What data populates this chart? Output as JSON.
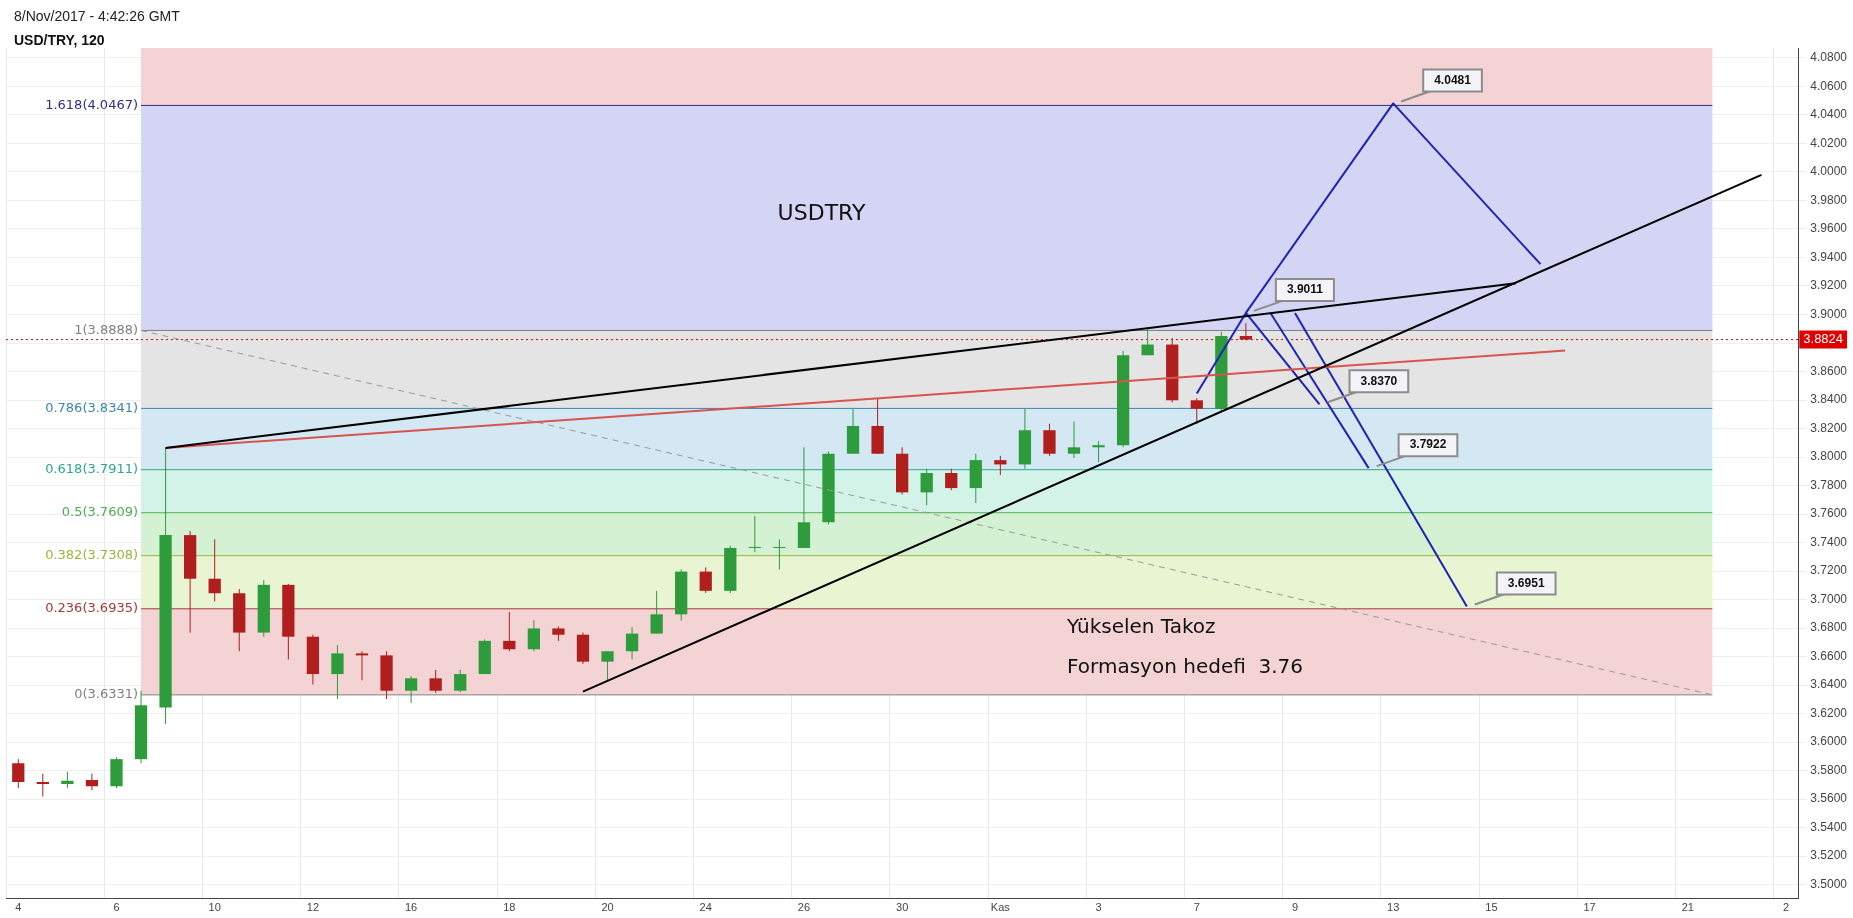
{
  "chart_data": {
    "type": "candlestick",
    "title": "USD/TRY, 120",
    "subtitle": "8/Nov/2017 - 4:42:26 GMT",
    "categories": [
      "4",
      null,
      null,
      null,
      "6",
      null,
      null,
      null,
      "10",
      null,
      null,
      null,
      "12",
      null,
      null,
      null,
      "16",
      null,
      null,
      null,
      "18",
      null,
      null,
      null,
      "20",
      null,
      null,
      null,
      "24",
      null,
      null,
      null,
      "26",
      null,
      null,
      null,
      "30",
      null,
      null,
      null,
      "Kas",
      null,
      null,
      null,
      "3",
      null,
      null,
      null,
      "7",
      null,
      null,
      null,
      "9",
      null,
      null,
      null,
      "13",
      null,
      null,
      null,
      "15",
      null,
      null,
      null,
      "17",
      null,
      null,
      null,
      "21",
      null,
      null,
      null,
      "2"
    ],
    "ohlc": [
      [
        3.5851,
        3.588,
        3.5676,
        3.5719
      ],
      [
        3.5719,
        3.5778,
        3.5618,
        3.5705
      ],
      [
        3.5705,
        3.5792,
        3.5676,
        3.5728
      ],
      [
        3.5734,
        3.5778,
        3.5661,
        3.569
      ],
      [
        3.569,
        3.5894,
        3.5676,
        3.588
      ],
      [
        3.588,
        3.636,
        3.5851,
        3.6258
      ],
      [
        3.6243,
        3.8064,
        3.6127,
        3.7452
      ],
      [
        3.7452,
        3.7481,
        3.6768,
        3.7146
      ],
      [
        3.7146,
        3.7423,
        3.6986,
        3.7044
      ],
      [
        3.7044,
        3.7074,
        3.6637,
        3.6768
      ],
      [
        3.6768,
        3.7138,
        3.6739,
        3.7103
      ],
      [
        3.7103,
        3.711,
        3.6579,
        3.6739
      ],
      [
        3.6739,
        3.6753,
        3.6404,
        3.6477
      ],
      [
        3.6477,
        3.668,
        3.6302,
        3.6622
      ],
      [
        3.6622,
        3.6637,
        3.6433,
        3.6608
      ],
      [
        3.6608,
        3.6637,
        3.6302,
        3.636
      ],
      [
        3.636,
        3.6462,
        3.6273,
        3.6447
      ],
      [
        3.6447,
        3.6506,
        3.6346,
        3.636
      ],
      [
        3.636,
        3.6506,
        3.635,
        3.6477
      ],
      [
        3.6477,
        3.672,
        3.6477,
        3.671
      ],
      [
        3.671,
        3.6913,
        3.6637,
        3.6651
      ],
      [
        3.6651,
        3.6855,
        3.6637,
        3.6797
      ],
      [
        3.6797,
        3.6811,
        3.671,
        3.6753
      ],
      [
        3.6753,
        3.6768,
        3.6549,
        3.6564
      ],
      [
        3.6564,
        3.6637,
        3.6433,
        3.6637
      ],
      [
        3.6637,
        3.6806,
        3.658,
        3.6761
      ],
      [
        3.6761,
        3.7061,
        3.6761,
        3.6896
      ],
      [
        3.6896,
        3.7211,
        3.6851,
        3.7196
      ],
      [
        3.7196,
        3.7226,
        3.7046,
        3.7061
      ],
      [
        3.7061,
        3.7377,
        3.7046,
        3.7362
      ],
      [
        3.7362,
        3.7587,
        3.7332,
        3.7362
      ],
      [
        3.7362,
        3.7422,
        3.7211,
        3.7362
      ],
      [
        3.7362,
        3.8068,
        3.7362,
        3.7542
      ],
      [
        3.7542,
        3.8038,
        3.7527,
        3.8023
      ],
      [
        3.8023,
        3.8338,
        3.8023,
        3.8218
      ],
      [
        3.8218,
        3.8413,
        3.8023,
        3.8023
      ],
      [
        3.8023,
        3.8068,
        3.7737,
        3.7752
      ],
      [
        3.7752,
        3.7918,
        3.7662,
        3.7888
      ],
      [
        3.7888,
        3.7918,
        3.7767,
        3.7782
      ],
      [
        3.7782,
        3.8023,
        3.7677,
        3.7978
      ],
      [
        3.7978,
        3.8008,
        3.7873,
        3.7948
      ],
      [
        3.7948,
        3.8338,
        3.7918,
        3.8188
      ],
      [
        3.8188,
        3.8233,
        3.8008,
        3.8023
      ],
      [
        3.8023,
        3.8248,
        3.7993,
        3.8068
      ],
      [
        3.8068,
        3.8113,
        3.7963,
        3.8083
      ],
      [
        3.8083,
        3.8744,
        3.8068,
        3.8714
      ],
      [
        3.8714,
        3.8909,
        3.8714,
        3.8789
      ],
      [
        3.8789,
        3.8834,
        3.8383,
        3.8398
      ],
      [
        3.8398,
        3.8413,
        3.8233,
        3.8338
      ],
      [
        3.8338,
        3.8879,
        3.8323,
        3.8849
      ],
      [
        3.8849,
        3.8939,
        3.8819,
        3.8824
      ],
      null,
      null,
      null,
      null,
      null,
      null,
      null,
      null,
      null,
      null,
      null,
      null,
      null,
      null,
      null,
      null,
      null,
      null,
      null,
      null,
      null,
      null
    ],
    "colors": [
      "#b01e1e",
      "#b01e1e",
      "#2e9b3c",
      "#b01e1e",
      "#2e9b3c",
      "#2e9b3c",
      "#2e9b3c",
      "#b01e1e",
      "#b01e1e",
      "#b01e1e",
      "#2e9b3c",
      "#b01e1e",
      "#b01e1e",
      "#2e9b3c",
      "#b01e1e",
      "#b01e1e",
      "#2e9b3c",
      "#b01e1e",
      "#2e9b3c",
      "#2e9b3c",
      "#b01e1e",
      "#2e9b3c",
      "#b01e1e",
      "#b01e1e",
      "#2e9b3c",
      "#2e9b3c",
      "#2e9b3c",
      "#2e9b3c",
      "#b01e1e",
      "#2e9b3c",
      "#2e9b3c",
      "#2e9b3c",
      "#2e9b3c",
      "#2e9b3c",
      "#2e9b3c",
      "#b01e1e",
      "#b01e1e",
      "#2e9b3c",
      "#b01e1e",
      "#2e9b3c",
      "#b01e1e",
      "#2e9b3c",
      "#b01e1e",
      "#2e9b3c",
      "#2e9b3c",
      "#2e9b3c",
      "#2e9b3c",
      "#b01e1e",
      "#b01e1e",
      "#2e9b3c",
      "#b01e1e",
      null,
      null,
      null,
      null,
      null,
      null,
      null,
      null,
      null,
      null,
      null,
      null,
      null,
      null,
      null,
      null,
      null,
      null,
      null,
      null,
      null,
      null
    ],
    "series": [
      {
        "type": "line",
        "color": "#000000",
        "values": [
          null,
          null,
          null,
          null,
          null,
          null,
          3.8064,
          null,
          null,
          null,
          null,
          null,
          null,
          null,
          null,
          null,
          null,
          null,
          null,
          null,
          null,
          null,
          null,
          null,
          null,
          null,
          null,
          null,
          null,
          null,
          null,
          null,
          null,
          null,
          null,
          null,
          null,
          null,
          null,
          null,
          null,
          null,
          null,
          null,
          null,
          null,
          null,
          null,
          null,
          null,
          null,
          null,
          null,
          null,
          null,
          null,
          null,
          null,
          null,
          null,
          null,
          3.922,
          null,
          null,
          null,
          null,
          null,
          null,
          null,
          null,
          null,
          null,
          null
        ]
      },
      {
        "type": "line",
        "color": "#000000",
        "values": [
          null,
          null,
          null,
          null,
          null,
          null,
          null,
          null,
          null,
          null,
          null,
          null,
          null,
          null,
          null,
          null,
          null,
          null,
          null,
          null,
          null,
          null,
          null,
          3.6354,
          null,
          null,
          null,
          null,
          null,
          null,
          null,
          null,
          null,
          null,
          null,
          null,
          null,
          null,
          null,
          null,
          null,
          null,
          null,
          null,
          null,
          null,
          null,
          null,
          null,
          null,
          null,
          null,
          null,
          null,
          null,
          null,
          null,
          null,
          null,
          null,
          null,
          null,
          null,
          null,
          null,
          null,
          null,
          null,
          null,
          null,
          null,
          3.998,
          null
        ]
      },
      {
        "type": "line",
        "color": "#d9534f",
        "values": [
          null,
          null,
          null,
          null,
          null,
          null,
          3.8064,
          null,
          null,
          null,
          null,
          null,
          null,
          null,
          null,
          null,
          null,
          null,
          null,
          null,
          null,
          null,
          null,
          null,
          null,
          null,
          null,
          null,
          null,
          null,
          null,
          null,
          null,
          null,
          null,
          null,
          null,
          null,
          null,
          null,
          null,
          null,
          null,
          null,
          null,
          null,
          null,
          null,
          null,
          null,
          null,
          null,
          null,
          null,
          null,
          null,
          null,
          null,
          null,
          null,
          null,
          null,
          null,
          3.8747,
          null,
          null,
          null,
          null,
          null,
          null,
          null,
          null,
          null
        ]
      },
      {
        "type": "line",
        "color": "#999999",
        "line_style": "dashed",
        "values": [
          null,
          null,
          null,
          null,
          null,
          3.8888,
          null,
          null,
          null,
          null,
          null,
          null,
          null,
          null,
          null,
          null,
          null,
          null,
          null,
          null,
          null,
          null,
          null,
          null,
          null,
          null,
          null,
          null,
          null,
          null,
          null,
          null,
          null,
          null,
          null,
          null,
          null,
          null,
          null,
          null,
          null,
          null,
          null,
          null,
          null,
          null,
          null,
          null,
          null,
          null,
          null,
          null,
          null,
          null,
          null,
          null,
          null,
          null,
          null,
          null,
          null,
          null,
          null,
          null,
          null,
          null,
          null,
          null,
          null,
          3.6331,
          null,
          null,
          null
        ]
      },
      {
        "type": "line",
        "color": "#1f24b0",
        "values": [
          null,
          null,
          null,
          null,
          null,
          null,
          null,
          null,
          null,
          null,
          null,
          null,
          null,
          null,
          null,
          null,
          null,
          null,
          null,
          null,
          null,
          null,
          null,
          null,
          null,
          null,
          null,
          null,
          null,
          null,
          null,
          null,
          null,
          null,
          null,
          null,
          null,
          null,
          null,
          null,
          null,
          null,
          null,
          null,
          null,
          null,
          null,
          null,
          3.8446,
          null,
          3.9011,
          null,
          null,
          null,
          null,
          null,
          4.0481,
          null,
          null,
          null,
          null,
          null,
          3.9353,
          null,
          null,
          null,
          null,
          null,
          null,
          null,
          null,
          null,
          null
        ]
      },
      {
        "type": "line",
        "color": "#1f24b0",
        "values": [
          null,
          null,
          null,
          null,
          null,
          null,
          null,
          null,
          null,
          null,
          null,
          null,
          null,
          null,
          null,
          null,
          null,
          null,
          null,
          null,
          null,
          null,
          null,
          null,
          null,
          null,
          null,
          null,
          null,
          null,
          null,
          null,
          null,
          null,
          null,
          null,
          null,
          null,
          null,
          null,
          null,
          null,
          null,
          null,
          null,
          null,
          null,
          null,
          null,
          null,
          3.9011,
          null,
          null,
          3.837,
          null,
          null,
          null,
          null,
          null,
          null,
          null,
          null,
          null,
          null,
          null,
          null,
          null,
          null,
          null,
          null,
          null,
          null,
          null
        ]
      },
      {
        "type": "line",
        "color": "#1f24b0",
        "values": [
          null,
          null,
          null,
          null,
          null,
          null,
          null,
          null,
          null,
          null,
          null,
          null,
          null,
          null,
          null,
          null,
          null,
          null,
          null,
          null,
          null,
          null,
          null,
          null,
          null,
          null,
          null,
          null,
          null,
          null,
          null,
          null,
          null,
          null,
          null,
          null,
          null,
          null,
          null,
          null,
          null,
          null,
          null,
          null,
          null,
          null,
          null,
          null,
          null,
          null,
          null,
          3.9011,
          null,
          null,
          null,
          3.7922,
          null,
          null,
          null,
          null,
          null,
          null,
          null,
          null,
          null,
          null,
          null,
          null,
          null,
          null,
          null,
          null,
          null
        ]
      },
      {
        "type": "line",
        "color": "#1f24b0",
        "values": [
          null,
          null,
          null,
          null,
          null,
          null,
          null,
          null,
          null,
          null,
          null,
          null,
          null,
          null,
          null,
          null,
          null,
          null,
          null,
          null,
          null,
          null,
          null,
          null,
          null,
          null,
          null,
          null,
          null,
          null,
          null,
          null,
          null,
          null,
          null,
          null,
          null,
          null,
          null,
          null,
          null,
          null,
          null,
          null,
          null,
          null,
          null,
          null,
          null,
          null,
          null,
          null,
          3.9011,
          null,
          null,
          null,
          null,
          null,
          null,
          3.6951,
          null,
          null,
          null,
          null,
          null,
          null,
          null,
          null,
          null,
          null,
          null,
          null,
          null
        ]
      }
    ],
    "ylim": [
      3.49,
      4.087
    ],
    "yticks": [
      {
        "value": 3.5,
        "label": "3.5000"
      },
      {
        "value": 3.52,
        "label": "3.5200"
      },
      {
        "value": 3.54,
        "label": "3.5400"
      },
      {
        "value": 3.56,
        "label": "3.5600"
      },
      {
        "value": 3.58,
        "label": "3.5800"
      },
      {
        "value": 3.6,
        "label": "3.6000"
      },
      {
        "value": 3.62,
        "label": "3.6200"
      },
      {
        "value": 3.64,
        "label": "3.6400"
      },
      {
        "value": 3.66,
        "label": "3.6600"
      },
      {
        "value": 3.68,
        "label": "3.6800"
      },
      {
        "value": 3.7,
        "label": "3.7000"
      },
      {
        "value": 3.72,
        "label": "3.7200"
      },
      {
        "value": 3.74,
        "label": "3.7400"
      },
      {
        "value": 3.76,
        "label": "3.7600"
      },
      {
        "value": 3.78,
        "label": "3.7800"
      },
      {
        "value": 3.8,
        "label": "3.8000"
      },
      {
        "value": 3.82,
        "label": "3.8200"
      },
      {
        "value": 3.84,
        "label": "3.8400"
      },
      {
        "value": 3.86,
        "label": "3.8600"
      },
      {
        "value": 3.88,
        "label": null
      },
      {
        "value": 3.9,
        "label": "3.9000"
      },
      {
        "value": 3.92,
        "label": "3.9200"
      },
      {
        "value": 3.94,
        "label": "3.9400"
      },
      {
        "value": 3.96,
        "label": "3.9600"
      },
      {
        "value": 3.98,
        "label": "3.9800"
      },
      {
        "value": 4.0,
        "label": "4.0000"
      },
      {
        "value": 4.02,
        "label": "4.0200"
      },
      {
        "value": 4.04,
        "label": "4.0400"
      },
      {
        "value": 4.06,
        "label": "4.0600"
      },
      {
        "value": 4.08,
        "label": "4.0800"
      }
    ],
    "grid": true,
    "marker": "none",
    "bands": [
      {
        "axis": "y",
        "from": 3.6331,
        "to": 3.6935,
        "color": "#f3d3d3"
      },
      {
        "axis": "y",
        "from": 3.6935,
        "to": 3.7308,
        "color": "#e9f4d3"
      },
      {
        "axis": "y",
        "from": 3.7308,
        "to": 3.7609,
        "color": "#d4f2d3"
      },
      {
        "axis": "y",
        "from": 3.7609,
        "to": 3.7911,
        "color": "#d3f3e8"
      },
      {
        "axis": "y",
        "from": 3.7911,
        "to": 3.8341,
        "color": "#d4e8f3"
      },
      {
        "axis": "y",
        "from": 3.8341,
        "to": 3.8888,
        "color": "#e4e4e4"
      },
      {
        "axis": "y",
        "from": 3.8888,
        "to": 4.0467,
        "color": "#d4d4f4"
      },
      {
        "axis": "y",
        "from": 4.0467,
        "to": 4.087,
        "color": "#f3d3d3"
      }
    ],
    "ref_lines": [
      {
        "axis": "y",
        "value": 4.0467,
        "label": "1.618(4.0467)",
        "color": "#2e2e8a"
      },
      {
        "axis": "y",
        "value": 3.8888,
        "label": "1(3.8888)",
        "color": "#808080"
      },
      {
        "axis": "y",
        "value": 3.8341,
        "label": "0.786(3.8341)",
        "color": "#3d85b0"
      },
      {
        "axis": "y",
        "value": 3.7911,
        "label": "0.618(3.7911)",
        "color": "#2aa88e"
      },
      {
        "axis": "y",
        "value": 3.7609,
        "label": "0.5(3.7609)",
        "color": "#4caf50"
      },
      {
        "axis": "y",
        "value": 3.7308,
        "label": "0.382(3.7308)",
        "color": "#9bb53c"
      },
      {
        "axis": "y",
        "value": 3.6935,
        "label": "0.236(3.6935)",
        "color": "#a33a3a"
      },
      {
        "axis": "y",
        "value": 3.6331,
        "label": "0(3.6331)",
        "color": "#808080"
      },
      {
        "axis": "y",
        "value": 3.8824,
        "label": "3.8824",
        "color": "#e00000",
        "line_style": "dotted"
      }
    ],
    "annotations": [
      "USDTRY",
      "Yükselen Takoz",
      "Formasyon hedefi  3.76",
      {
        "text": "4.0481",
        "y": 4.0481
      },
      {
        "text": "3.9011",
        "y": 3.9011
      },
      {
        "text": "3.8370",
        "y": 3.837
      },
      {
        "text": "3.7922",
        "y": 3.7922
      },
      {
        "text": "3.6951",
        "y": 3.6951
      }
    ]
  }
}
